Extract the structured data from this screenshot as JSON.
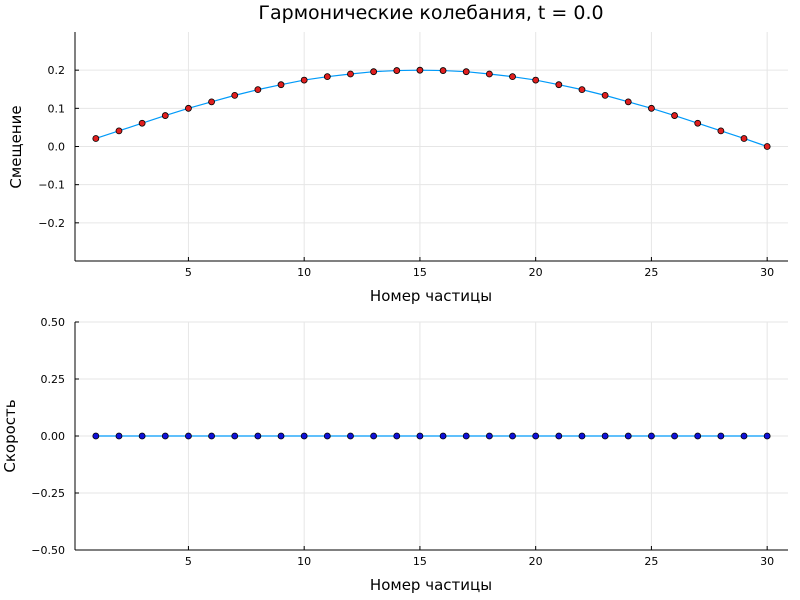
{
  "chart_data": [
    {
      "type": "line",
      "title": "Гармонические колебания, t = 0.0",
      "xlabel": "Номер частицы",
      "ylabel": "Смещение",
      "xlim": [
        0.1,
        30.9
      ],
      "ylim": [
        -0.3,
        0.3
      ],
      "xticks": [
        5,
        10,
        15,
        20,
        25,
        30
      ],
      "yticks": [
        -0.2,
        -0.1,
        0.0,
        0.1,
        0.2
      ],
      "ytick_labels": [
        "−0.2",
        "−0.1",
        "0.0",
        "0.1",
        "0.2"
      ],
      "grid": true,
      "legend": "none",
      "series": [
        {
          "x": [
            1,
            2,
            3,
            4,
            5,
            6,
            7,
            8,
            9,
            10,
            11,
            12,
            13,
            14,
            15,
            16,
            17,
            18,
            19,
            20,
            21,
            22,
            23,
            24,
            25,
            26,
            27,
            28,
            29,
            30
          ],
          "y": [
            0.021,
            0.041,
            0.061,
            0.081,
            0.1,
            0.117,
            0.134,
            0.149,
            0.162,
            0.174,
            0.183,
            0.19,
            0.196,
            0.199,
            0.2,
            0.199,
            0.196,
            0.19,
            0.183,
            0.174,
            0.162,
            0.149,
            0.134,
            0.117,
            0.1,
            0.081,
            0.061,
            0.041,
            0.021,
            0.0
          ],
          "line_color": "#009af9",
          "marker_color": "#e01f1f"
        }
      ]
    },
    {
      "type": "line",
      "title": "",
      "xlabel": "Номер частицы",
      "ylabel": "Скорость",
      "xlim": [
        0.1,
        30.9
      ],
      "ylim": [
        -0.5,
        0.5
      ],
      "xticks": [
        5,
        10,
        15,
        20,
        25,
        30
      ],
      "yticks": [
        -0.5,
        -0.25,
        0.0,
        0.25,
        0.5
      ],
      "ytick_labels": [
        "−0.50",
        "−0.25",
        "0.00",
        "0.25",
        "0.50"
      ],
      "grid": true,
      "legend": "none",
      "series": [
        {
          "x": [
            1,
            2,
            3,
            4,
            5,
            6,
            7,
            8,
            9,
            10,
            11,
            12,
            13,
            14,
            15,
            16,
            17,
            18,
            19,
            20,
            21,
            22,
            23,
            24,
            25,
            26,
            27,
            28,
            29,
            30
          ],
          "y": [
            0,
            0,
            0,
            0,
            0,
            0,
            0,
            0,
            0,
            0,
            0,
            0,
            0,
            0,
            0,
            0,
            0,
            0,
            0,
            0,
            0,
            0,
            0,
            0,
            0,
            0,
            0,
            0,
            0,
            0
          ],
          "line_color": "#009af9",
          "marker_color": "#1010d8"
        }
      ]
    }
  ]
}
